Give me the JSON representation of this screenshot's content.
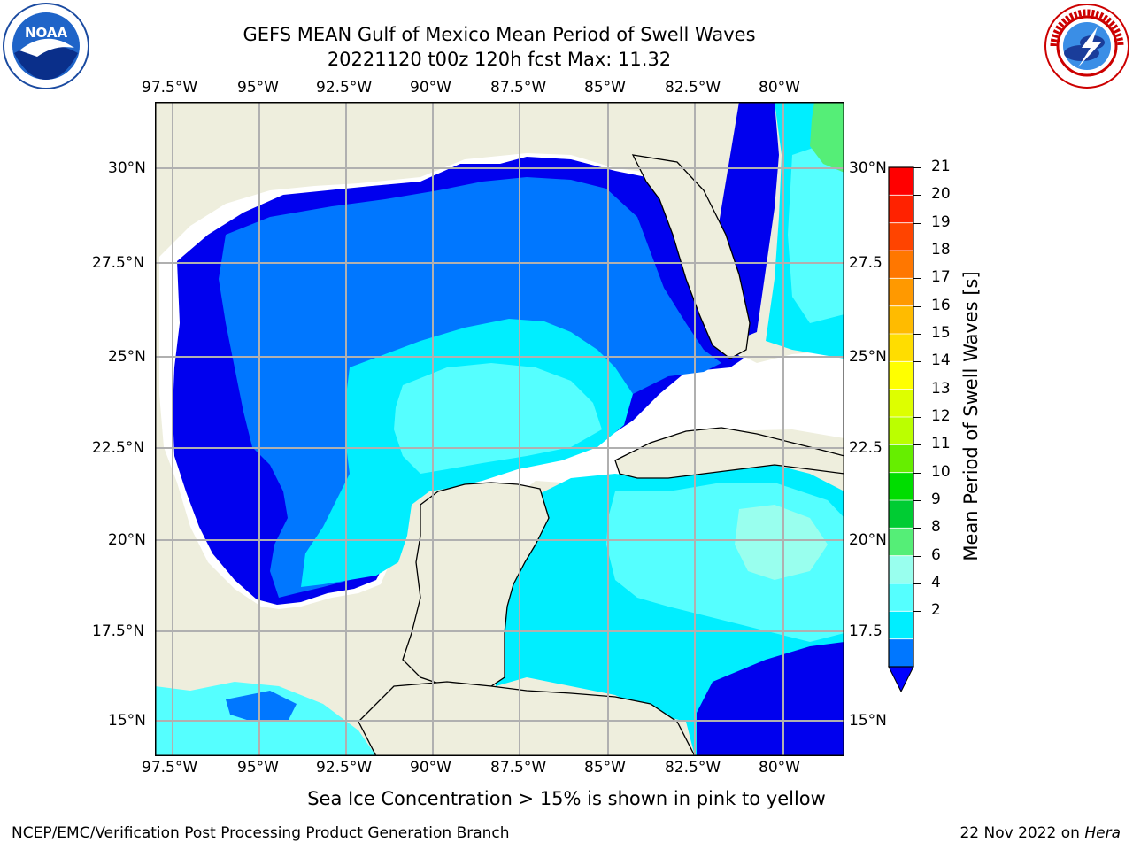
{
  "title_line1": "GEFS MEAN Gulf of Mexico Mean Period of Swell Waves",
  "title_line2": "20221120 t00z 120h fcst   Max: 11.32",
  "lon_labels": [
    "97.5°W",
    "95°W",
    "92.5°W",
    "90°W",
    "87.5°W",
    "85°W",
    "82.5°W",
    "80°W"
  ],
  "lat_labels_left": [
    "30°N",
    "27.5°N",
    "25°N",
    "22.5°N",
    "20°N",
    "17.5°N",
    "15°N"
  ],
  "lat_labels_right": [
    "30°N",
    "27.5",
    "25°N",
    "22.5",
    "20°N",
    "17.5",
    "15°N"
  ],
  "colorbar": {
    "label": "Mean Period of Swell Waves [s]",
    "ticks": [
      "21",
      "20",
      "19",
      "18",
      "17",
      "16",
      "15",
      "14",
      "13",
      "12",
      "11",
      "10",
      "9",
      "8",
      "6",
      "4",
      "2"
    ],
    "colors": [
      "#ff0000",
      "#ff2200",
      "#ff4400",
      "#ff7700",
      "#ff9900",
      "#ffbb00",
      "#ffdd00",
      "#ffff00",
      "#ddff00",
      "#bbff00",
      "#66ee00",
      "#00dd00",
      "#00cc33",
      "#55ee77",
      "#99ffee",
      "#55ffff",
      "#00eeff",
      "#0077ff"
    ],
    "extend_color": "#0000ff"
  },
  "note": "Sea Ice Concentration > 15% is shown in pink to yellow",
  "footer_left": "NCEP/EMC/Verification Post Processing Product Generation Branch",
  "footer_right_prefix": "22 Nov 2022 on ",
  "footer_right_italic": "Hera",
  "logos": {
    "left": "noaa-logo",
    "right": "nws-logo",
    "noaa_text": "NOAA"
  },
  "colors": {
    "land": "#eeeedd",
    "deep_blue": "#0000ee",
    "mid_blue": "#0077ff",
    "cyan": "#00eeff",
    "light_cyan": "#55ffff"
  }
}
